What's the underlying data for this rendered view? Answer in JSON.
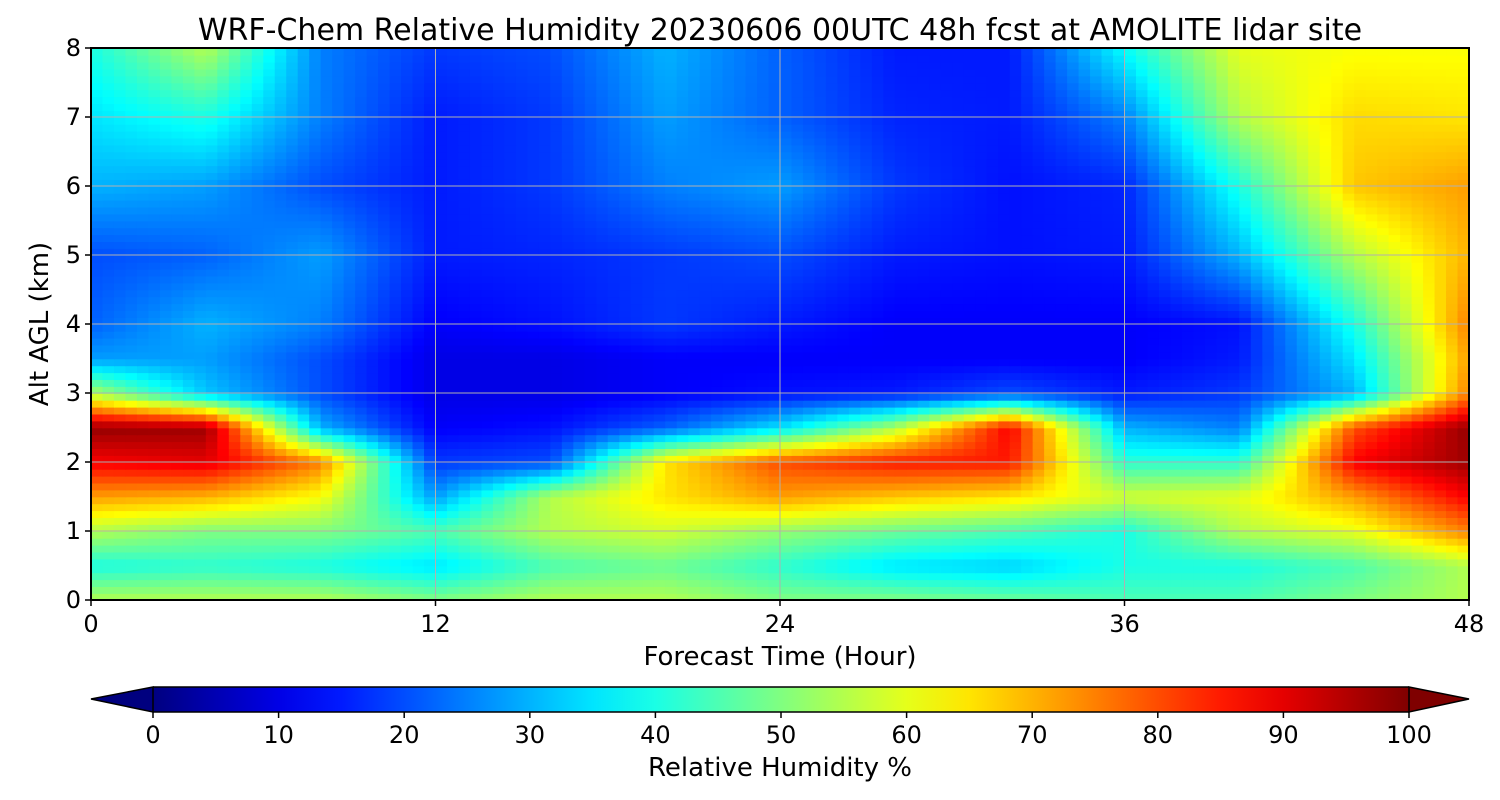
{
  "chart_data": {
    "type": "heatmap",
    "title": "WRF-Chem Relative Humidity 20230606 00UTC 48h fcst at AMOLITE lidar site",
    "xlabel": "Forecast Time (Hour)",
    "ylabel": "Alt AGL (km)",
    "xlim": [
      0,
      48
    ],
    "ylim": [
      0,
      8
    ],
    "x_ticks": [
      "0",
      "12",
      "24",
      "36",
      "48"
    ],
    "y_ticks": [
      "0",
      "1",
      "2",
      "3",
      "4",
      "5",
      "6",
      "7",
      "8"
    ],
    "grid": true,
    "colormap": "jet",
    "colorbar": {
      "label": "Relative Humidity %",
      "ticks": [
        "0",
        "10",
        "20",
        "30",
        "40",
        "50",
        "60",
        "70",
        "80",
        "90",
        "100"
      ],
      "range": [
        0,
        100
      ],
      "extend": "both"
    },
    "x": [
      0,
      4,
      8,
      12,
      16,
      20,
      24,
      28,
      32,
      36,
      40,
      44,
      48
    ],
    "y": [
      0,
      0.5,
      1,
      1.5,
      2,
      2.5,
      3,
      3.5,
      4,
      5,
      6,
      7,
      8
    ],
    "z": [
      [
        55,
        55,
        55,
        50,
        55,
        55,
        50,
        50,
        48,
        45,
        45,
        50,
        55
      ],
      [
        40,
        42,
        40,
        35,
        45,
        48,
        42,
        35,
        33,
        40,
        40,
        45,
        55
      ],
      [
        55,
        50,
        50,
        45,
        55,
        58,
        52,
        48,
        45,
        40,
        55,
        60,
        75
      ],
      [
        72,
        70,
        62,
        28,
        55,
        65,
        72,
        68,
        65,
        58,
        60,
        72,
        88
      ],
      [
        88,
        90,
        75,
        18,
        20,
        65,
        80,
        85,
        85,
        42,
        42,
        88,
        97
      ],
      [
        98,
        97,
        30,
        12,
        14,
        22,
        35,
        55,
        88,
        30,
        25,
        80,
        98
      ],
      [
        55,
        32,
        20,
        10,
        10,
        12,
        14,
        15,
        20,
        15,
        18,
        30,
        75
      ],
      [
        28,
        28,
        20,
        10,
        10,
        12,
        12,
        12,
        12,
        12,
        15,
        35,
        72
      ],
      [
        22,
        30,
        25,
        12,
        14,
        18,
        15,
        12,
        12,
        12,
        14,
        40,
        75
      ],
      [
        20,
        22,
        28,
        15,
        16,
        18,
        20,
        15,
        14,
        15,
        30,
        55,
        70
      ],
      [
        30,
        28,
        20,
        15,
        18,
        25,
        28,
        18,
        14,
        16,
        40,
        68,
        72
      ],
      [
        35,
        40,
        25,
        15,
        18,
        28,
        22,
        16,
        15,
        25,
        55,
        66,
        65
      ],
      [
        40,
        55,
        25,
        18,
        20,
        30,
        22,
        15,
        15,
        38,
        60,
        62,
        62
      ]
    ]
  }
}
